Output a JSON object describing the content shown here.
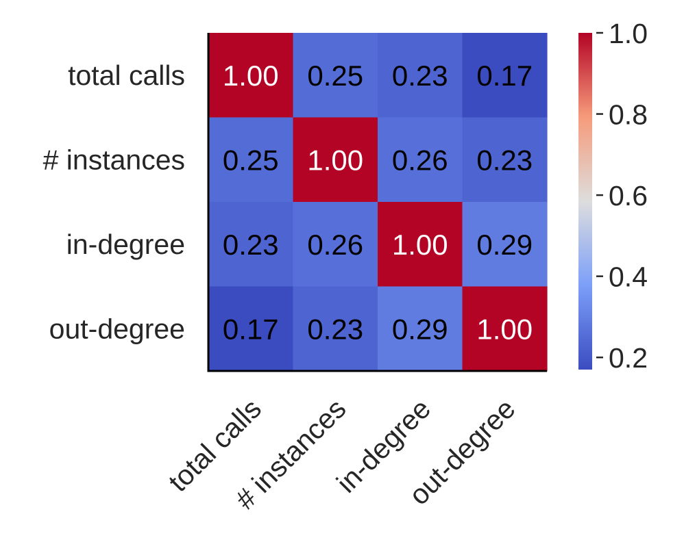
{
  "chart_data": {
    "type": "heatmap",
    "title": "",
    "xlabel": "",
    "ylabel": "",
    "x_categories": [
      "total calls",
      "# instances",
      "in-degree",
      "out-degree"
    ],
    "y_categories": [
      "total calls",
      "# instances",
      "in-degree",
      "out-degree"
    ],
    "values": [
      [
        1.0,
        0.25,
        0.23,
        0.17
      ],
      [
        0.25,
        1.0,
        0.26,
        0.23
      ],
      [
        0.23,
        0.26,
        1.0,
        0.29
      ],
      [
        0.17,
        0.23,
        0.29,
        1.0
      ]
    ],
    "value_labels": [
      [
        "1.00",
        "0.25",
        "0.23",
        "0.17"
      ],
      [
        "0.25",
        "1.00",
        "0.26",
        "0.23"
      ],
      [
        "0.23",
        "0.26",
        "1.00",
        "0.29"
      ],
      [
        "0.17",
        "0.23",
        "0.29",
        "1.00"
      ]
    ],
    "colormap": "coolwarm",
    "colorbar": {
      "vmin": 0.17,
      "vmax": 1.0,
      "ticks": [
        0.2,
        0.4,
        0.6,
        0.8,
        1.0
      ],
      "tick_labels": [
        "0.2",
        "0.4",
        "0.6",
        "0.8",
        "1.0"
      ]
    },
    "grid": false,
    "legend": "colorbar-right"
  },
  "colors": {
    "text": "#262626",
    "annotation_dark": "#000000",
    "annotation_light": "#ffffff",
    "axis": "#000000"
  }
}
